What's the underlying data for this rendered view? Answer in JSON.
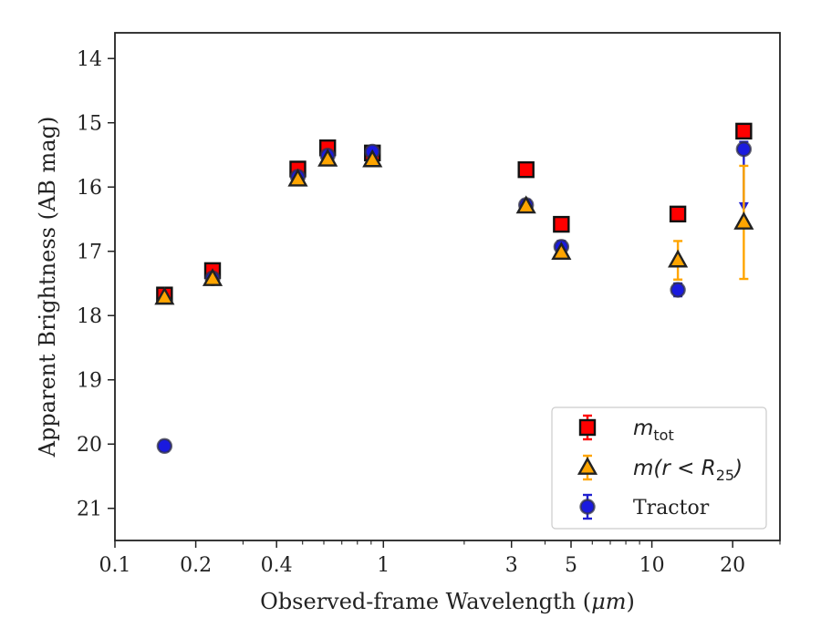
{
  "chart_data": {
    "type": "scatter",
    "xlabel_prefix": "Observed-frame Wavelength (",
    "xlabel_unit": "μm",
    "xlabel_suffix": ")",
    "ylabel": "Apparent Brightness (AB mag)",
    "x_scale": "log",
    "xlim": [
      0.1,
      30
    ],
    "ylim": [
      21.5,
      13.6
    ],
    "y_inverted": true,
    "grid": false,
    "legend_position": "bottom-right",
    "x_ticks": [
      {
        "value": 0.1,
        "label": "0.1"
      },
      {
        "value": 0.2,
        "label": "0.2"
      },
      {
        "value": 0.4,
        "label": "0.4"
      },
      {
        "value": 1,
        "label": "1"
      },
      {
        "value": 3,
        "label": "3"
      },
      {
        "value": 5,
        "label": "5"
      },
      {
        "value": 10,
        "label": "10"
      },
      {
        "value": 20,
        "label": "20"
      }
    ],
    "y_ticks": [
      {
        "value": 14,
        "label": "14"
      },
      {
        "value": 15,
        "label": "15"
      },
      {
        "value": 16,
        "label": "16"
      },
      {
        "value": 17,
        "label": "17"
      },
      {
        "value": 18,
        "label": "18"
      },
      {
        "value": 19,
        "label": "19"
      },
      {
        "value": 20,
        "label": "20"
      },
      {
        "value": 21,
        "label": "21"
      }
    ],
    "series": [
      {
        "name": "m_tot",
        "legend_main": "m",
        "legend_sub": "tot",
        "marker": "square",
        "color": "#ff0000",
        "edge_color": "#111111",
        "error_color": "#ff0000",
        "points": [
          {
            "x": 0.153,
            "y": 17.68,
            "err": 0.05
          },
          {
            "x": 0.231,
            "y": 17.3,
            "err": 0.05
          },
          {
            "x": 0.48,
            "y": 15.72,
            "err": 0.04
          },
          {
            "x": 0.62,
            "y": 15.39,
            "err": 0.04
          },
          {
            "x": 0.91,
            "y": 15.47,
            "err": 0.04
          },
          {
            "x": 3.4,
            "y": 15.73,
            "err": 0.03
          },
          {
            "x": 4.6,
            "y": 16.58,
            "err": 0.03
          },
          {
            "x": 12.5,
            "y": 16.42,
            "err": 0.04
          },
          {
            "x": 22.0,
            "y": 15.13,
            "err": 0.04
          }
        ]
      },
      {
        "name": "m(r < R25)",
        "legend_main": "m(r < R",
        "legend_sub": "25",
        "legend_end": ")",
        "marker": "triangle",
        "color": "#ffa500",
        "edge_color": "#222222",
        "error_color": "#ffa500",
        "points": [
          {
            "x": 0.153,
            "y": 17.72,
            "err": 0.04
          },
          {
            "x": 0.231,
            "y": 17.43,
            "err": 0.04
          },
          {
            "x": 0.48,
            "y": 15.88,
            "err": 0.04
          },
          {
            "x": 0.62,
            "y": 15.57,
            "err": 0.04
          },
          {
            "x": 0.91,
            "y": 15.58,
            "err": 0.04
          },
          {
            "x": 3.4,
            "y": 16.3,
            "err": 0.04
          },
          {
            "x": 4.6,
            "y": 17.02,
            "err": 0.04
          },
          {
            "x": 12.5,
            "y": 17.14,
            "err": 0.3
          },
          {
            "x": 22.0,
            "y": 16.55,
            "err": 0.88
          }
        ]
      },
      {
        "name": "Tractor",
        "legend_main": "Tractor",
        "marker": "circle",
        "color": "#1a1adf",
        "edge_color": "#333344",
        "error_color": "#2020d0",
        "points": [
          {
            "x": 0.153,
            "y": 20.03,
            "err": 0.08
          },
          {
            "x": 0.231,
            "y": 17.42,
            "err": 0.05
          },
          {
            "x": 0.48,
            "y": 15.84,
            "err": 0.05
          },
          {
            "x": 0.62,
            "y": 15.51,
            "err": 0.05
          },
          {
            "x": 0.91,
            "y": 15.45,
            "err": 0.08
          },
          {
            "x": 3.4,
            "y": 16.28,
            "err": 0.08
          },
          {
            "x": 4.6,
            "y": 16.93,
            "err": 0.09
          },
          {
            "x": 12.5,
            "y": 17.6,
            "err": 0.1
          },
          {
            "x": 22.0,
            "y": 15.41,
            "err": 0.1,
            "arrow_to": 16.35
          }
        ]
      }
    ]
  }
}
